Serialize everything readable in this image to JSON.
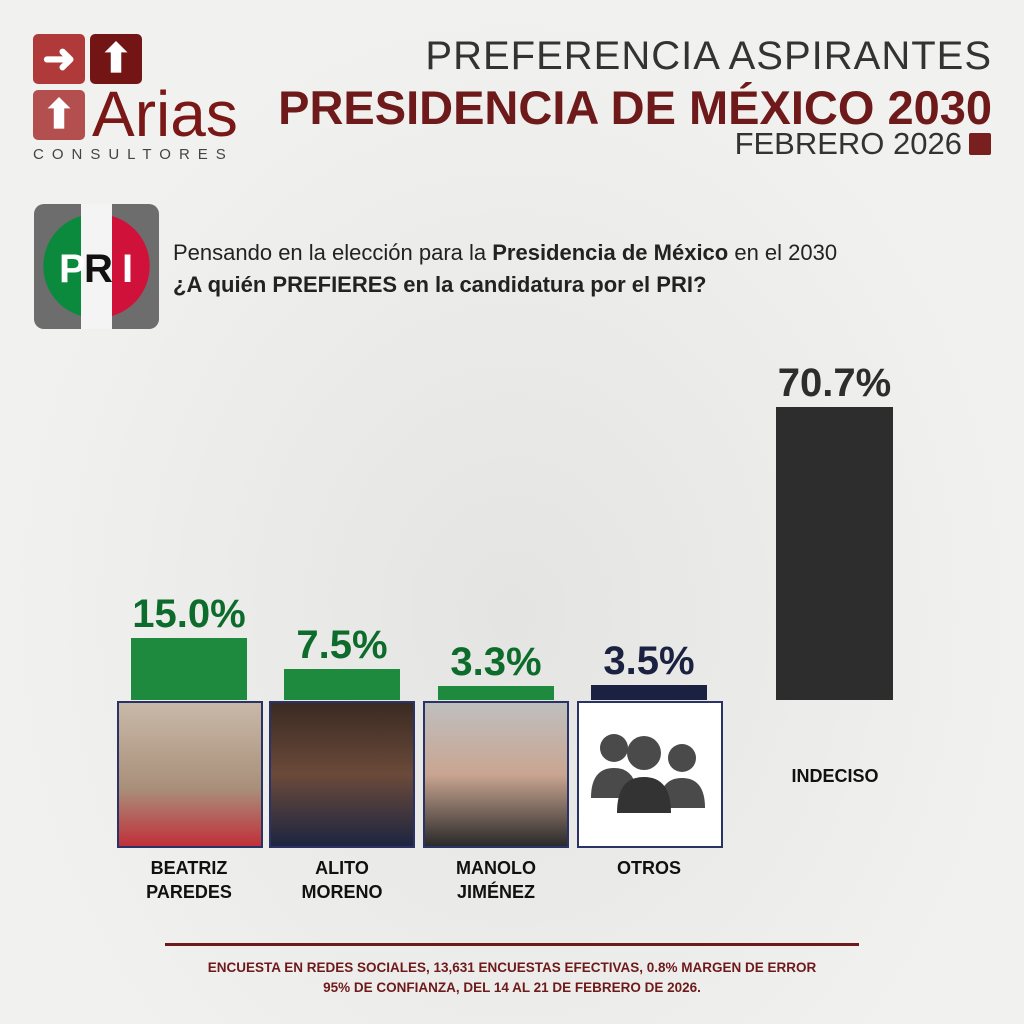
{
  "logo": {
    "brand": "Arias",
    "sub": "CONSULTORES"
  },
  "header": {
    "line1": "PREFERENCIA ASPIRANTES",
    "line2": "PRESIDENCIA DE MÉXICO 2030",
    "line3": "FEBRERO 2026"
  },
  "party_logo": "PRI",
  "question": {
    "pre": "Pensando en la elección para la ",
    "bold": "Presidencia de México",
    "post": " en el 2030",
    "line2": "¿A quién PREFIERES en la candidatura por el PRI?"
  },
  "chart_data": {
    "type": "bar",
    "categories": [
      "BEATRIZ PAREDES",
      "ALITO MORENO",
      "MANOLO JIMÉNEZ",
      "OTROS",
      "INDECISO"
    ],
    "values": [
      15.0,
      7.5,
      3.3,
      3.5,
      70.7
    ],
    "labels": [
      "15.0%",
      "7.5%",
      "3.3%",
      "3.5%",
      "70.7%"
    ],
    "colors": [
      "#1e8a3e",
      "#1e8a3e",
      "#1e8a3e",
      "#1b2140",
      "#2d2d2d"
    ],
    "label_colors": [
      "#0d6b2c",
      "#0d6b2c",
      "#0d6b2c",
      "#1b2140",
      "#2d2d2d"
    ],
    "ylim": [
      0,
      70.7
    ]
  },
  "names": [
    [
      "BEATRIZ",
      "PAREDES"
    ],
    [
      "ALITO",
      "MORENO"
    ],
    [
      "MANOLO",
      "JIMÉNEZ"
    ],
    [
      "OTROS"
    ],
    [
      "INDECISO"
    ]
  ],
  "footer": {
    "line1": "ENCUESTA EN REDES SOCIALES, 13,631 ENCUESTAS EFECTIVAS, 0.8% MARGEN DE ERROR",
    "line2": "95% DE CONFIANZA, DEL 14 AL 21 DE FEBRERO DE 2026."
  }
}
